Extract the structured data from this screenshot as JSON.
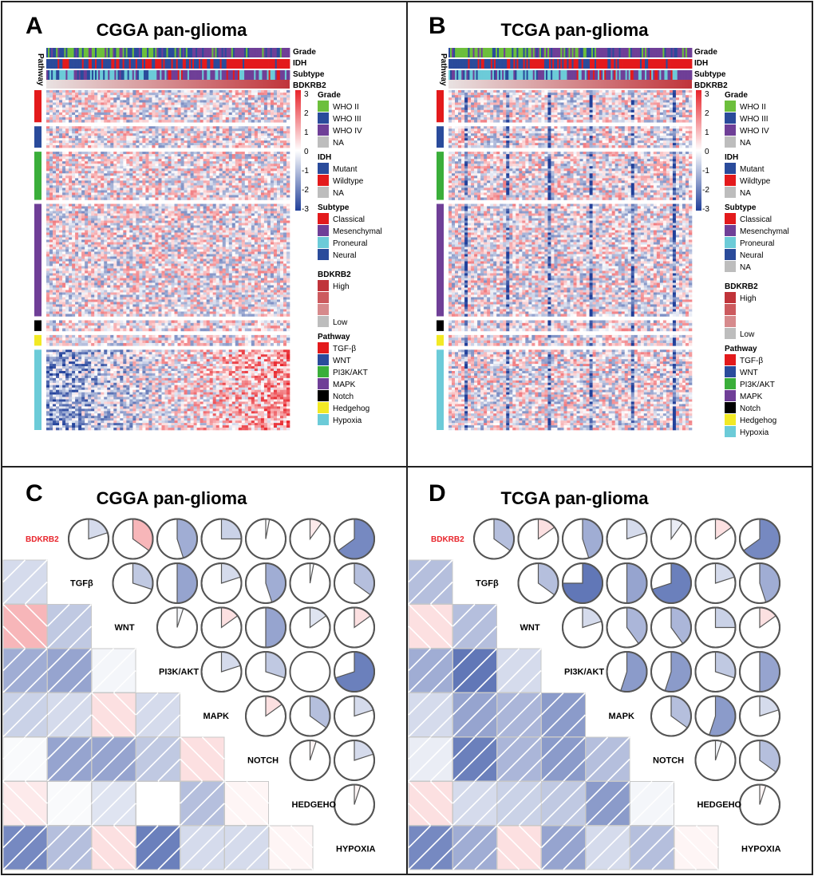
{
  "figure": {
    "panels": {
      "A": {
        "letter": "A",
        "title": "CGGA pan-glioma"
      },
      "B": {
        "letter": "B",
        "title": "TCGA pan-glioma"
      },
      "C": {
        "letter": "C",
        "title": "CGGA pan-glioma"
      },
      "D": {
        "letter": "D",
        "title": "TCGA pan-glioma"
      }
    }
  },
  "heatmap_labels": {
    "pathway_axis": "Pathway",
    "annotation_rows": [
      "Grade",
      "IDH",
      "Subtype",
      "BDKRB2"
    ],
    "colorbar_ticks": [
      "3",
      "2",
      "1",
      "0",
      "-1",
      "-2",
      "-3"
    ]
  },
  "legends": {
    "A": [
      {
        "title": "Grade",
        "items": [
          {
            "label": "WHO II",
            "color": "#6cbf3c"
          },
          {
            "label": "WHO III",
            "color": "#2a4b9b"
          },
          {
            "label": "WHO IV",
            "color": "#6f3f97"
          },
          {
            "label": "NA",
            "color": "#bdbdbd"
          }
        ]
      },
      {
        "title": "IDH",
        "items": [
          {
            "label": "Mutant",
            "color": "#2a4b9b"
          },
          {
            "label": "Wildtype",
            "color": "#e31a1c"
          },
          {
            "label": "NA",
            "color": "#bdbdbd"
          }
        ]
      },
      {
        "title": "Subtype",
        "items": [
          {
            "label": "Classical",
            "color": "#e31a1c"
          },
          {
            "label": "Mesenchymal",
            "color": "#6f3f97"
          },
          {
            "label": "Proneural",
            "color": "#6ccbd8"
          },
          {
            "label": "Neural",
            "color": "#2a4b9b"
          }
        ]
      },
      {
        "title": "BDKRB2",
        "items": [
          {
            "label": "High",
            "color": "#c0343a"
          },
          {
            "label": "",
            "color": "#cc5a5e"
          },
          {
            "label": "",
            "color": "#d68a8c"
          },
          {
            "label": "Low",
            "color": "#bdbdbd"
          }
        ]
      },
      {
        "title": "Pathway",
        "items": [
          {
            "label": "TGF-β",
            "color": "#e31a1c"
          },
          {
            "label": "WNT",
            "color": "#2a4b9b"
          },
          {
            "label": "PI3K/AKT",
            "color": "#3aae3a"
          },
          {
            "label": "MAPK",
            "color": "#6f3f97"
          },
          {
            "label": "Notch",
            "color": "#000000"
          },
          {
            "label": "Hedgehog",
            "color": "#f2e925"
          },
          {
            "label": "Hypoxia",
            "color": "#6ccbd8"
          }
        ]
      }
    ],
    "B": [
      {
        "title": "Grade",
        "items": [
          {
            "label": "WHO II",
            "color": "#6cbf3c"
          },
          {
            "label": "WHO III",
            "color": "#2a4b9b"
          },
          {
            "label": "WHO IV",
            "color": "#6f3f97"
          },
          {
            "label": "NA",
            "color": "#bdbdbd"
          }
        ]
      },
      {
        "title": "IDH",
        "items": [
          {
            "label": "Mutant",
            "color": "#2a4b9b"
          },
          {
            "label": "Wildtype",
            "color": "#e31a1c"
          },
          {
            "label": "NA",
            "color": "#bdbdbd"
          }
        ]
      },
      {
        "title": "Subtype",
        "items": [
          {
            "label": "Classical",
            "color": "#e31a1c"
          },
          {
            "label": "Mesenchymal",
            "color": "#6f3f97"
          },
          {
            "label": "Proneural",
            "color": "#6ccbd8"
          },
          {
            "label": "Neural",
            "color": "#2a4b9b"
          },
          {
            "label": "NA",
            "color": "#bdbdbd"
          }
        ]
      },
      {
        "title": "BDKRB2",
        "items": [
          {
            "label": "High",
            "color": "#c0343a"
          },
          {
            "label": "",
            "color": "#cc5a5e"
          },
          {
            "label": "",
            "color": "#d68a8c"
          },
          {
            "label": "Low",
            "color": "#bdbdbd"
          }
        ]
      },
      {
        "title": "Pathway",
        "items": [
          {
            "label": "TGF-β",
            "color": "#e31a1c"
          },
          {
            "label": "WNT",
            "color": "#2a4b9b"
          },
          {
            "label": "PI3K/AKT",
            "color": "#3aae3a"
          },
          {
            "label": "MAPK",
            "color": "#6f3f97"
          },
          {
            "label": "Notch",
            "color": "#000000"
          },
          {
            "label": "Hedgehog",
            "color": "#f2e925"
          },
          {
            "label": "Hypoxia",
            "color": "#6ccbd8"
          }
        ]
      }
    ]
  },
  "chart_data": [
    {
      "panel": "A",
      "type": "heatmap",
      "title": "CGGA pan-glioma",
      "annotation_rows": [
        "Grade",
        "IDH",
        "Subtype",
        "BDKRB2"
      ],
      "row_groups": [
        {
          "pathway": "TGF-β",
          "weight": 6
        },
        {
          "pathway": "WNT",
          "weight": 4
        },
        {
          "pathway": "PI3K/AKT",
          "weight": 9
        },
        {
          "pathway": "MAPK",
          "weight": 21
        },
        {
          "pathway": "Notch",
          "weight": 2
        },
        {
          "pathway": "Hedgehog",
          "weight": 2
        },
        {
          "pathway": "Hypoxia",
          "weight": 15
        }
      ],
      "color_scale": {
        "min": -3,
        "max": 3,
        "low": "#21409a",
        "mid": "#ffffff",
        "high": "#e8242b"
      },
      "trend": "Hypoxia genes shift from blue to red as BDKRB2 increases"
    },
    {
      "panel": "B",
      "type": "heatmap",
      "title": "TCGA pan-glioma",
      "annotation_rows": [
        "Grade",
        "IDH",
        "Subtype",
        "BDKRB2"
      ],
      "row_groups": [
        {
          "pathway": "TGF-β",
          "weight": 6
        },
        {
          "pathway": "WNT",
          "weight": 4
        },
        {
          "pathway": "PI3K/AKT",
          "weight": 9
        },
        {
          "pathway": "MAPK",
          "weight": 21
        },
        {
          "pathway": "Notch",
          "weight": 2
        },
        {
          "pathway": "Hedgehog",
          "weight": 2
        },
        {
          "pathway": "Hypoxia",
          "weight": 15
        }
      ],
      "color_scale": {
        "min": -3,
        "max": 3,
        "low": "#21409a",
        "mid": "#ffffff",
        "high": "#e8242b"
      }
    },
    {
      "panel": "C",
      "type": "correlogram",
      "title": "CGGA pan-glioma",
      "variables": [
        "BDKRB2",
        "TGFβ",
        "WNT",
        "PI3K/AKT",
        "MAPK",
        "NOTCH",
        "HEDGEHO",
        "HYPOXIA"
      ],
      "highlight_variable": "BDKRB2",
      "matrix": [
        [
          1,
          -0.2,
          0.35,
          -0.45,
          -0.25,
          -0.03,
          0.1,
          -0.65
        ],
        [
          -0.2,
          1,
          -0.3,
          -0.5,
          -0.2,
          -0.45,
          -0.03,
          -0.35
        ],
        [
          0.35,
          -0.3,
          1,
          -0.05,
          0.15,
          -0.5,
          -0.15,
          0.15
        ],
        [
          -0.45,
          -0.5,
          -0.05,
          1,
          -0.2,
          -0.3,
          0.0,
          -0.7
        ],
        [
          -0.25,
          -0.2,
          0.15,
          -0.2,
          1,
          0.15,
          -0.35,
          -0.2
        ],
        [
          -0.03,
          -0.5,
          -0.5,
          -0.3,
          0.15,
          1,
          0.05,
          -0.2
        ],
        [
          0.1,
          -0.03,
          -0.15,
          0.0,
          -0.35,
          0.05,
          1,
          0.05
        ],
        [
          -0.65,
          -0.35,
          0.15,
          -0.7,
          -0.2,
          -0.2,
          0.05,
          1
        ]
      ]
    },
    {
      "panel": "D",
      "type": "correlogram",
      "title": "TCGA pan-glioma",
      "variables": [
        "BDKRB2",
        "TGFβ",
        "WNT",
        "PI3K/AKT",
        "MAPK",
        "NOTCH",
        "HEDGEHO",
        "HYPOXIA"
      ],
      "highlight_variable": "BDKRB2",
      "matrix": [
        [
          1,
          -0.35,
          0.15,
          -0.45,
          -0.2,
          -0.1,
          0.15,
          -0.65
        ],
        [
          -0.35,
          1,
          -0.35,
          -0.75,
          -0.5,
          -0.7,
          -0.2,
          -0.45
        ],
        [
          0.15,
          -0.35,
          1,
          -0.2,
          -0.4,
          -0.4,
          -0.25,
          0.15
        ],
        [
          -0.45,
          -0.75,
          -0.2,
          1,
          -0.55,
          -0.55,
          -0.3,
          -0.5
        ],
        [
          -0.2,
          -0.5,
          -0.4,
          -0.55,
          1,
          -0.35,
          -0.55,
          -0.2
        ],
        [
          -0.1,
          -0.7,
          -0.4,
          -0.55,
          -0.35,
          1,
          -0.05,
          -0.35
        ],
        [
          0.15,
          -0.2,
          -0.25,
          -0.3,
          -0.55,
          -0.05,
          1,
          0.05
        ],
        [
          -0.65,
          -0.45,
          0.15,
          -0.5,
          -0.2,
          -0.35,
          0.05,
          1
        ]
      ]
    }
  ]
}
